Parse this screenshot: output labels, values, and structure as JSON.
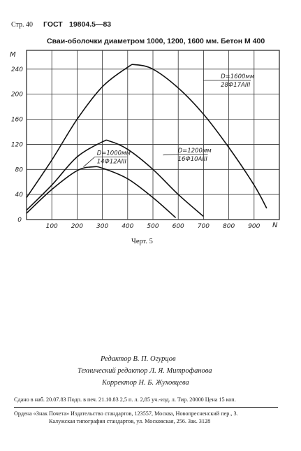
{
  "header": {
    "page": "Стр. 40",
    "gost": "ГОСТ",
    "doc_number": "19804.5—83"
  },
  "chart_data": {
    "type": "line",
    "title": "Сваи-оболочки диаметром 1000, 1200, 1600 мм. Бетон М 400",
    "xlabel": "N",
    "ylabel": "M",
    "xlim": [
      0,
      1000
    ],
    "ylim": [
      0,
      270
    ],
    "grid": true,
    "x_ticks": [
      100,
      200,
      300,
      400,
      500,
      600,
      700,
      800,
      900
    ],
    "y_ticks": [
      40,
      80,
      120,
      160,
      200,
      240
    ],
    "series": [
      {
        "name": "D=1600мм 28Ф17АIII",
        "label_top": "D=1600мм",
        "label_bottom": "28Ф17АIII",
        "x": [
          0,
          100,
          200,
          300,
          400,
          430,
          500,
          600,
          700,
          800,
          900,
          950
        ],
        "y": [
          35,
          95,
          160,
          212,
          243,
          247,
          240,
          210,
          168,
          115,
          55,
          18
        ]
      },
      {
        "name": "D=1200мм 16Ф10АIII",
        "label_top": "D=1200мм",
        "label_bottom": "16Ф10АIII",
        "x": [
          0,
          100,
          200,
          300,
          330,
          400,
          500,
          600,
          700
        ],
        "y": [
          15,
          55,
          100,
          124,
          125,
          112,
          80,
          40,
          5
        ]
      },
      {
        "name": "D=1000мм 14Ф12АIII",
        "label_top": "D=1000мм",
        "label_bottom": "14Ф12АIII",
        "x": [
          0,
          100,
          200,
          260,
          300,
          400,
          500,
          590
        ],
        "y": [
          10,
          48,
          78,
          84,
          82,
          65,
          35,
          3
        ]
      }
    ]
  },
  "figure_caption": "Черт. 5",
  "credits": [
    {
      "role": "Редактор",
      "name": "В. П. Огурцов"
    },
    {
      "role": "Технический редактор",
      "name": "Л. Я. Митрофанова"
    },
    {
      "role": "Корректор",
      "name": "Н. Б. Жуховцева"
    }
  ],
  "imprint": {
    "line1": "Сдано в наб. 20.07.83  Подп. в печ. 21.10.83  2,5 п. л.  2,85 уч.-изд. л.  Тир. 20000  Цена 15 коп.",
    "line2": "Ордена «Знак Почета» Издательство стандартов, 123557, Москва, Новопресненский пер., 3.",
    "line3": "Калужская типография стандартов, ул. Московская, 256. Зак. 3128"
  }
}
